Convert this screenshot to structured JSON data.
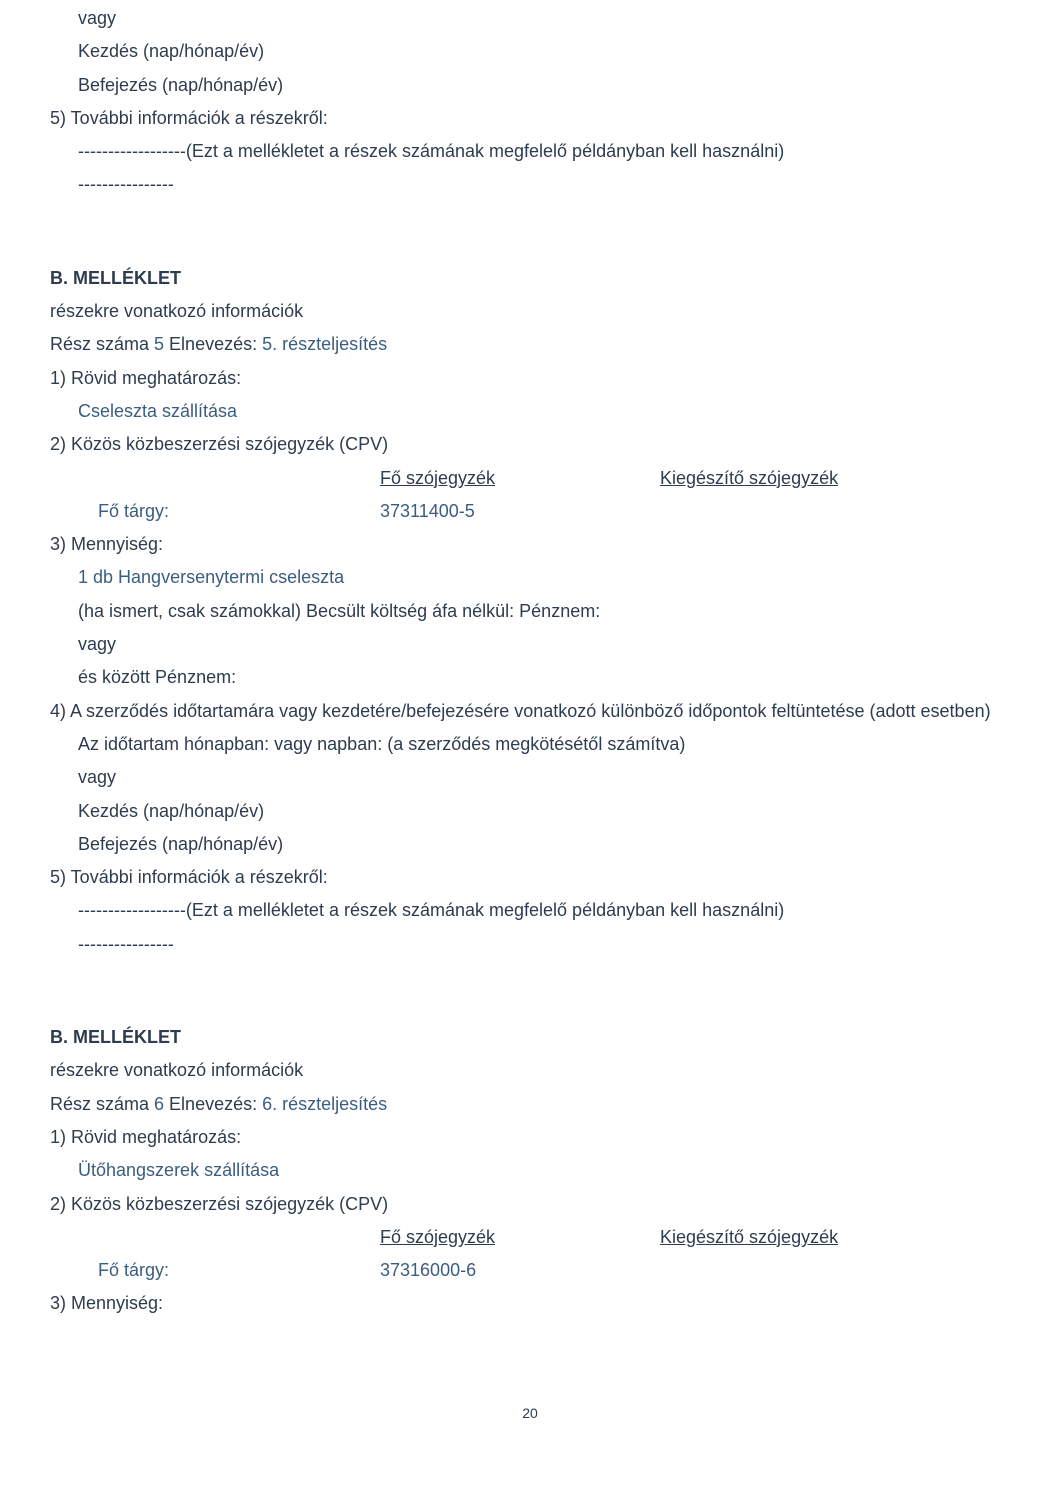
{
  "top": {
    "vagy": "vagy",
    "kezdes": "Kezdés (nap/hónap/év)",
    "befejezes": "Befejezés (nap/hónap/év)",
    "point5": "5) További információk a részekről:",
    "note": "------------------(Ezt a mellékletet a részek számának megfelelő példányban kell használni)",
    "dashes": "----------------"
  },
  "sec5": {
    "heading": "B. MELLÉKLET",
    "sub": "részekre vonatkozó információk",
    "resz_prefix": "Rész száma ",
    "resz_num": "5",
    "elnev_prefix": " Elnevezés: ",
    "elnev_val": "5. részteljesítés",
    "p1": "1) Rövid meghatározás:",
    "p1_val": "Cseleszta szállítása",
    "p2": "2) Közös közbeszerzési szójegyzék (CPV)",
    "fo_szojegyzek": "Fő szójegyzék",
    "kieg_szojegyzek": "Kiegészítő szójegyzék",
    "fo_targy": "Fő tárgy:",
    "cpv_code": "37311400-5",
    "p3": "3) Mennyiség:",
    "p3_val": "1 db Hangversenytermi cseleszta",
    "ha_ismert": "(ha ismert, csak számokkal) Becsült költség áfa nélkül: Pénznem:",
    "vagy": "vagy",
    "es_kozott": "és között Pénznem:",
    "p4": "4) A szerződés időtartamára vagy kezdetére/befejezésére vonatkozó különböző időpontok feltüntetése (adott esetben)",
    "idotartam": "Az időtartam hónapban: vagy napban: (a szerződés megkötésétől számítva)",
    "vagy2": "vagy",
    "kezdes": "Kezdés (nap/hónap/év)",
    "befejezes": "Befejezés (nap/hónap/év)",
    "p5": "5) További információk a részekről:",
    "note": "------------------(Ezt a mellékletet a részek számának megfelelő példányban kell használni)",
    "dashes": "----------------"
  },
  "sec6": {
    "heading": "B. MELLÉKLET",
    "sub": "részekre vonatkozó információk",
    "resz_prefix": "Rész száma ",
    "resz_num": "6",
    "elnev_prefix": " Elnevezés: ",
    "elnev_val": "6. részteljesítés",
    "p1": "1) Rövid meghatározás:",
    "p1_val": "Ütőhangszerek szállítása",
    "p2": "2) Közös közbeszerzési szójegyzék (CPV)",
    "fo_szojegyzek": "Fő szójegyzék",
    "kieg_szojegyzek": "Kiegészítő szójegyzék",
    "fo_targy": "Fő tárgy:",
    "cpv_code": "37316000-6",
    "p3": "3) Mennyiség:"
  },
  "page_number": "20",
  "colors": {
    "text": "#2d3c4f",
    "blue": "#3b5d80",
    "background": "#ffffff"
  }
}
